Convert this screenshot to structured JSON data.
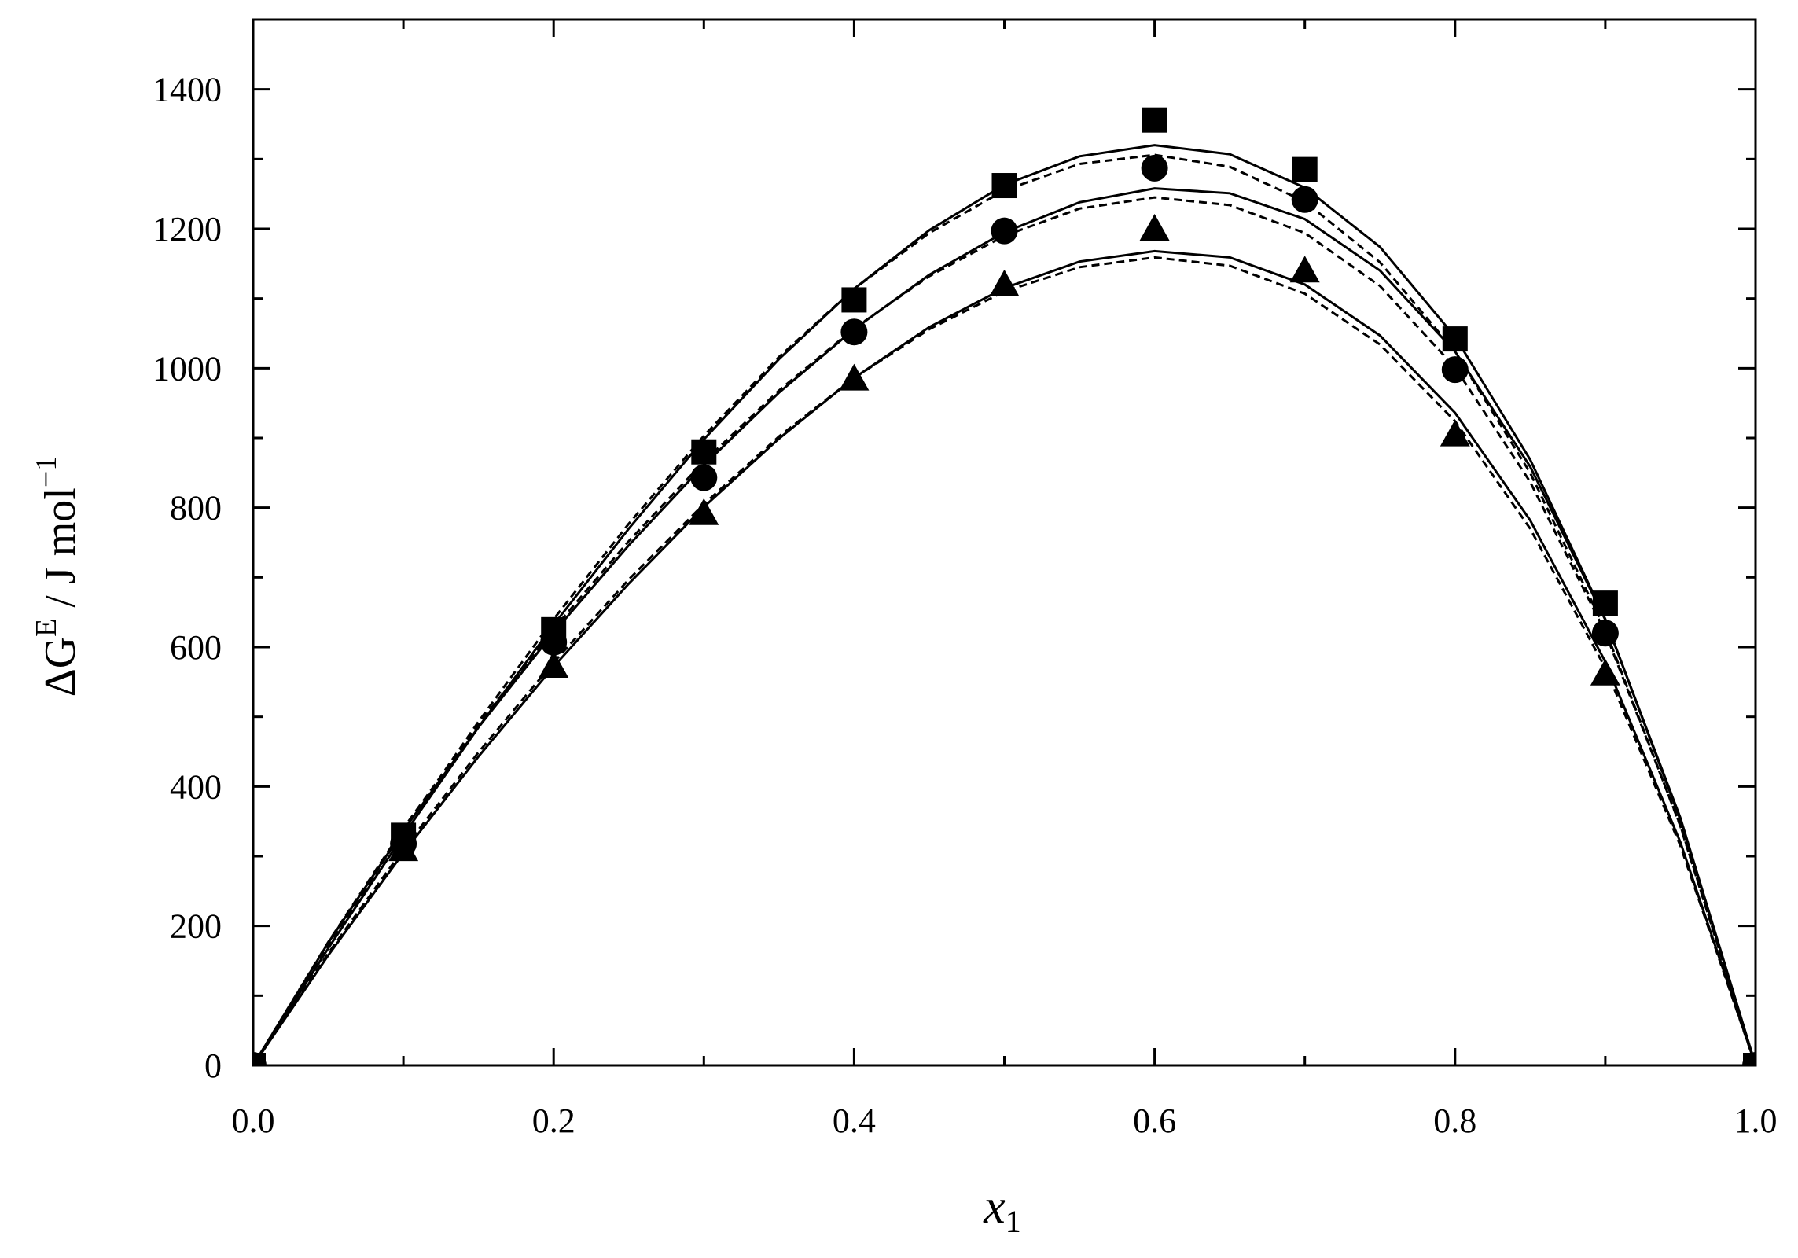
{
  "chart_data": {
    "type": "scatter",
    "ylabel": [
      "ΔG",
      "E",
      " / J mol",
      "−1"
    ],
    "xlabel": [
      "x",
      "1"
    ],
    "xlim": [
      0,
      1
    ],
    "ylim": [
      0,
      1500
    ],
    "xticks": [
      {
        "value": 0,
        "label": "0.0"
      },
      0.2,
      0.4,
      0.6,
      0.8,
      {
        "value": 1,
        "label": "1.0"
      }
    ],
    "yticks": [
      0,
      200,
      400,
      600,
      800,
      1000,
      1200,
      1400
    ],
    "xminor": [
      0.1,
      0.3,
      0.5,
      0.7,
      0.9
    ],
    "yminor": [
      100,
      300,
      500,
      700,
      900,
      1100,
      1300,
      1500
    ],
    "series": [
      {
        "type": "scatter",
        "marker": "square",
        "color": "#000000",
        "x": [
          0,
          0.1,
          0.2,
          0.3,
          0.4,
          0.5,
          0.6,
          0.7,
          0.8,
          0.9,
          1
        ],
        "values": [
          0,
          330,
          625,
          880,
          1098,
          1262,
          1356,
          1285,
          1042,
          663,
          0
        ]
      },
      {
        "type": "scatter",
        "marker": "circle",
        "color": "#000000",
        "x": [
          0,
          0.1,
          0.2,
          0.3,
          0.4,
          0.5,
          0.6,
          0.7,
          0.8,
          0.9,
          1
        ],
        "values": [
          0,
          318,
          607,
          843,
          1052,
          1197,
          1287,
          1242,
          998,
          620,
          0
        ]
      },
      {
        "type": "scatter",
        "marker": "triangle",
        "color": "#000000",
        "x": [
          0,
          0.1,
          0.2,
          0.3,
          0.4,
          0.5,
          0.6,
          0.7,
          0.8,
          0.9,
          1
        ],
        "values": [
          0,
          310,
          573,
          792,
          985,
          1120,
          1200,
          1140,
          905,
          562,
          0
        ]
      },
      {
        "type": "line",
        "dash": false,
        "color": "#000000",
        "x": [
          0,
          0.05,
          0.1,
          0.15,
          0.2,
          0.25,
          0.3,
          0.35,
          0.4,
          0.45,
          0.5,
          0.55,
          0.6,
          0.65,
          0.7,
          0.75,
          0.8,
          0.85,
          0.9,
          0.95,
          1
        ],
        "values": [
          0,
          168,
          330,
          485,
          632,
          770,
          898,
          1013,
          1114,
          1198,
          1263,
          1304,
          1320,
          1307,
          1259,
          1174,
          1045,
          869,
          640,
          352,
          0
        ]
      },
      {
        "type": "line",
        "dash": true,
        "color": "#000000",
        "x": [
          0,
          0.05,
          0.1,
          0.15,
          0.2,
          0.25,
          0.3,
          0.35,
          0.4,
          0.45,
          0.5,
          0.55,
          0.6,
          0.65,
          0.7,
          0.75,
          0.8,
          0.85,
          0.9,
          0.95,
          1
        ],
        "values": [
          0,
          172,
          337,
          493,
          640,
          777,
          903,
          1016,
          1114,
          1194,
          1255,
          1293,
          1306,
          1289,
          1239,
          1152,
          1024,
          850,
          625,
          343,
          0
        ]
      },
      {
        "type": "line",
        "dash": false,
        "color": "#000000",
        "x": [
          0,
          0.05,
          0.1,
          0.15,
          0.2,
          0.25,
          0.3,
          0.35,
          0.4,
          0.45,
          0.5,
          0.55,
          0.6,
          0.65,
          0.7,
          0.75,
          0.8,
          0.85,
          0.9,
          0.95,
          1
        ],
        "values": [
          0,
          176,
          337,
          485,
          621,
          746,
          861,
          965,
          1056,
          1134,
          1195,
          1238,
          1258,
          1251,
          1214,
          1140,
          1024,
          859,
          639,
          355,
          0
        ]
      },
      {
        "type": "line",
        "dash": true,
        "color": "#000000",
        "x": [
          0,
          0.05,
          0.1,
          0.15,
          0.2,
          0.25,
          0.3,
          0.35,
          0.4,
          0.45,
          0.5,
          0.55,
          0.6,
          0.65,
          0.7,
          0.75,
          0.8,
          0.85,
          0.9,
          0.95,
          1
        ],
        "values": [
          0,
          177,
          340,
          489,
          626,
          752,
          866,
          968,
          1057,
          1132,
          1190,
          1229,
          1245,
          1234,
          1194,
          1118,
          1001,
          837,
          621,
          344,
          0
        ]
      },
      {
        "type": "line",
        "dash": false,
        "color": "#000000",
        "x": [
          0,
          0.05,
          0.1,
          0.15,
          0.2,
          0.25,
          0.3,
          0.35,
          0.4,
          0.45,
          0.5,
          0.55,
          0.6,
          0.65,
          0.7,
          0.75,
          0.8,
          0.85,
          0.9,
          0.95,
          1
        ],
        "values": [
          0,
          158,
          305,
          443,
          572,
          691,
          801,
          899,
          986,
          1059,
          1115,
          1153,
          1168,
          1159,
          1120,
          1047,
          936,
          782,
          579,
          320,
          0
        ]
      },
      {
        "type": "line",
        "dash": true,
        "color": "#000000",
        "x": [
          0,
          0.05,
          0.1,
          0.15,
          0.2,
          0.25,
          0.3,
          0.35,
          0.4,
          0.45,
          0.5,
          0.55,
          0.6,
          0.65,
          0.7,
          0.75,
          0.8,
          0.85,
          0.9,
          0.95,
          1
        ],
        "values": [
          0,
          161,
          310,
          449,
          578,
          697,
          805,
          902,
          986,
          1056,
          1110,
          1145,
          1159,
          1147,
          1107,
          1034,
          924,
          770,
          570,
          315,
          0
        ]
      }
    ]
  }
}
